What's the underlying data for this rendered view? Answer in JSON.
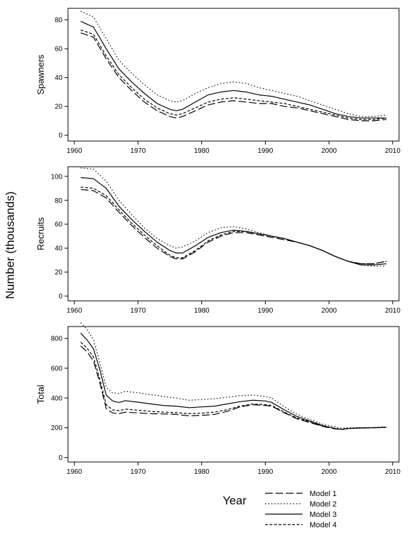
{
  "figure": {
    "ylabel": "Number (thousands)",
    "xlabel": "Year"
  },
  "legend": {
    "placement": "bottom-right",
    "entries": [
      {
        "name": "Model 1",
        "dash": "long-dash"
      },
      {
        "name": "Model 2",
        "dash": "dotted"
      },
      {
        "name": "Model 3",
        "dash": "solid"
      },
      {
        "name": "Model 4",
        "dash": "short-dash"
      }
    ]
  },
  "chart_data": [
    {
      "type": "line",
      "title": "",
      "ylabel": "Spawners",
      "xlim": [
        1959,
        2011
      ],
      "ylim": [
        -4,
        88
      ],
      "xticks": [
        1960,
        1970,
        1980,
        1990,
        2000,
        2010
      ],
      "yticks": [
        0,
        20,
        40,
        60,
        80
      ],
      "x": [
        1961,
        1963,
        1965,
        1967,
        1969,
        1971,
        1973,
        1975,
        1976,
        1977,
        1979,
        1981,
        1983,
        1985,
        1987,
        1989,
        1991,
        1993,
        1995,
        1997,
        1999,
        2001,
        2003,
        2005,
        2007,
        2009
      ],
      "series": [
        {
          "name": "Model 1",
          "values": [
            71,
            68,
            53,
            40,
            31,
            23,
            17,
            13,
            12,
            13,
            17,
            21,
            23,
            24,
            23,
            22,
            22,
            20,
            19,
            17,
            15,
            13,
            11,
            10,
            10,
            11
          ]
        },
        {
          "name": "Model 2",
          "values": [
            86,
            82,
            67,
            52,
            43,
            35,
            28,
            24,
            23,
            24,
            29,
            33,
            36,
            37,
            36,
            33,
            31,
            29,
            27,
            24,
            21,
            18,
            15,
            13,
            13,
            14
          ]
        },
        {
          "name": "Model 3",
          "values": [
            79,
            75,
            60,
            46,
            37,
            29,
            22,
            18,
            17,
            18,
            23,
            28,
            30,
            31,
            30,
            28,
            27,
            25,
            23,
            21,
            18,
            15,
            13,
            12,
            12,
            12
          ]
        },
        {
          "name": "Model 4",
          "values": [
            73,
            70,
            55,
            42,
            33,
            25,
            19,
            15,
            14,
            15,
            19,
            23,
            25,
            26,
            25,
            24,
            23,
            22,
            20,
            18,
            16,
            14,
            12,
            11,
            11,
            12
          ]
        }
      ]
    },
    {
      "type": "line",
      "title": "",
      "ylabel": "Recruits",
      "xlim": [
        1959,
        2011
      ],
      "ylim": [
        -4,
        108
      ],
      "xticks": [
        1960,
        1970,
        1980,
        1990,
        2000,
        2010
      ],
      "yticks": [
        0,
        20,
        40,
        60,
        80,
        100
      ],
      "x": [
        1961,
        1963,
        1965,
        1967,
        1969,
        1971,
        1973,
        1975,
        1976,
        1977,
        1979,
        1981,
        1983,
        1985,
        1987,
        1989,
        1991,
        1993,
        1995,
        1997,
        1999,
        2001,
        2003,
        2005,
        2007,
        2009
      ],
      "series": [
        {
          "name": "Model 1",
          "values": [
            89,
            88,
            82,
            70,
            59,
            49,
            40,
            33,
            31,
            31,
            37,
            45,
            50,
            53,
            53,
            51,
            49,
            47,
            45,
            42,
            38,
            33,
            29,
            27,
            27,
            29
          ]
        },
        {
          "name": "Model 2",
          "values": [
            107,
            106,
            96,
            80,
            68,
            57,
            48,
            42,
            40,
            41,
            46,
            53,
            57,
            58,
            56,
            53,
            50,
            48,
            45,
            42,
            38,
            33,
            29,
            26,
            25,
            25
          ]
        },
        {
          "name": "Model 3",
          "values": [
            99,
            98,
            90,
            75,
            64,
            54,
            45,
            38,
            36,
            36,
            42,
            49,
            53,
            55,
            54,
            52,
            50,
            48,
            45,
            42,
            38,
            33,
            29,
            26,
            26,
            27
          ]
        },
        {
          "name": "Model 4",
          "values": [
            91,
            90,
            84,
            72,
            61,
            51,
            42,
            34,
            32,
            32,
            38,
            46,
            51,
            54,
            54,
            52,
            50,
            48,
            45,
            42,
            38,
            33,
            29,
            27,
            27,
            29
          ]
        }
      ]
    },
    {
      "type": "line",
      "title": "",
      "ylabel": "Total",
      "xlim": [
        1959,
        2011
      ],
      "ylim": [
        -30,
        880
      ],
      "xticks": [
        1960,
        1970,
        1980,
        1990,
        2000,
        2010
      ],
      "yticks": [
        0,
        200,
        400,
        600,
        800
      ],
      "x": [
        1961,
        1962,
        1963,
        1964,
        1965,
        1966,
        1967,
        1968,
        1970,
        1972,
        1974,
        1976,
        1978,
        1980,
        1982,
        1984,
        1986,
        1988,
        1990,
        1991,
        1993,
        1995,
        1997,
        1999,
        2001,
        2002,
        2003,
        2005,
        2007,
        2009
      ],
      "series": [
        {
          "name": "Model 1",
          "values": [
            750,
            710,
            650,
            500,
            330,
            300,
            295,
            305,
            300,
            295,
            293,
            290,
            280,
            283,
            290,
            310,
            340,
            355,
            350,
            345,
            300,
            260,
            235,
            210,
            192,
            188,
            195,
            200,
            200,
            203
          ]
        },
        {
          "name": "Model 2",
          "values": [
            905,
            860,
            790,
            640,
            470,
            435,
            430,
            445,
            435,
            422,
            410,
            400,
            385,
            390,
            395,
            405,
            415,
            420,
            410,
            400,
            340,
            290,
            255,
            225,
            205,
            198,
            200,
            200,
            202,
            205
          ]
        },
        {
          "name": "Model 3",
          "values": [
            835,
            790,
            730,
            590,
            420,
            380,
            370,
            382,
            372,
            360,
            350,
            345,
            335,
            340,
            345,
            360,
            375,
            385,
            380,
            370,
            320,
            275,
            245,
            215,
            195,
            190,
            195,
            198,
            200,
            203
          ]
        },
        {
          "name": "Model 4",
          "values": [
            775,
            735,
            675,
            525,
            355,
            320,
            315,
            325,
            318,
            310,
            305,
            302,
            295,
            298,
            305,
            322,
            345,
            360,
            355,
            350,
            305,
            265,
            240,
            212,
            195,
            190,
            196,
            200,
            201,
            204
          ]
        }
      ]
    }
  ]
}
